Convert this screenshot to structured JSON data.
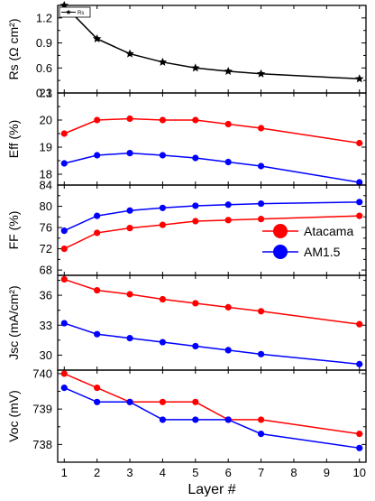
{
  "chart_data": {
    "type": "line",
    "xlabel": "Layer #",
    "x_ticks": [
      1,
      2,
      3,
      4,
      5,
      6,
      7,
      8,
      9,
      10
    ],
    "xlim": [
      0.8,
      10.2
    ],
    "colors": {
      "Rs": "#000000",
      "Atacama": "#ff0000",
      "AM1.5": "#0000ff"
    },
    "legend": {
      "placement": "right, in FF panel",
      "entries": [
        {
          "label": "Atacama",
          "color": "#ff0000",
          "marker": "circle"
        },
        {
          "label": "AM1.5",
          "color": "#0000ff",
          "marker": "circle"
        }
      ]
    },
    "panels": [
      {
        "id": "rs",
        "ylabel": "Rs (Ω cm²)",
        "ylim": [
          0.3,
          1.35
        ],
        "yticks": [
          0.3,
          0.6,
          0.9,
          1.2
        ],
        "mini_legend": "Rs",
        "series": [
          {
            "name": "Rs",
            "color": "#000000",
            "marker": "star",
            "x": [
              1,
              2,
              3,
              4,
              5,
              6,
              7,
              10
            ],
            "y": [
              1.35,
              0.95,
              0.77,
              0.67,
              0.6,
              0.56,
              0.53,
              0.47
            ]
          }
        ]
      },
      {
        "id": "eff",
        "ylabel": "Eff (%)",
        "ylim": [
          17.6,
          21
        ],
        "yticks": [
          18,
          19,
          20,
          21
        ],
        "series": [
          {
            "name": "Atacama",
            "color": "#ff0000",
            "marker": "circle",
            "x": [
              1,
              2,
              3,
              4,
              5,
              6,
              7,
              10
            ],
            "y": [
              19.5,
              20.0,
              20.05,
              20.0,
              20.0,
              19.85,
              19.7,
              19.15
            ]
          },
          {
            "name": "AM1.5",
            "color": "#0000ff",
            "marker": "circle",
            "x": [
              1,
              2,
              3,
              4,
              5,
              6,
              7,
              10
            ],
            "y": [
              18.4,
              18.7,
              18.78,
              18.7,
              18.6,
              18.45,
              18.3,
              17.7
            ]
          }
        ]
      },
      {
        "id": "ff",
        "ylabel": "FF (%)",
        "ylim": [
          67,
          84
        ],
        "yticks": [
          68,
          72,
          76,
          80,
          84
        ],
        "series": [
          {
            "name": "Atacama",
            "color": "#ff0000",
            "marker": "circle",
            "x": [
              1,
              2,
              3,
              4,
              5,
              6,
              7,
              10
            ],
            "y": [
              72.0,
              75.0,
              75.9,
              76.5,
              77.2,
              77.4,
              77.6,
              78.2
            ]
          },
          {
            "name": "AM1.5",
            "color": "#0000ff",
            "marker": "circle",
            "x": [
              1,
              2,
              3,
              4,
              5,
              6,
              7,
              10
            ],
            "y": [
              75.4,
              78.2,
              79.2,
              79.7,
              80.1,
              80.3,
              80.5,
              80.8
            ]
          }
        ]
      },
      {
        "id": "jsc",
        "ylabel": "Jsc (mA/cm²)",
        "ylim": [
          28.5,
          38
        ],
        "yticks": [
          30,
          33,
          36
        ],
        "series": [
          {
            "name": "Atacama",
            "color": "#ff0000",
            "marker": "circle",
            "x": [
              1,
              2,
              3,
              4,
              5,
              6,
              7,
              10
            ],
            "y": [
              37.6,
              36.5,
              36.1,
              35.6,
              35.2,
              34.8,
              34.4,
              33.1
            ]
          },
          {
            "name": "AM1.5",
            "color": "#0000ff",
            "marker": "circle",
            "x": [
              1,
              2,
              3,
              4,
              5,
              6,
              7,
              10
            ],
            "y": [
              33.2,
              32.1,
              31.7,
              31.3,
              30.9,
              30.5,
              30.1,
              29.1
            ]
          }
        ]
      },
      {
        "id": "voc",
        "ylabel": "Voc (mV)",
        "ylim": [
          737.5,
          740.1
        ],
        "yticks": [
          738,
          739,
          740
        ],
        "series": [
          {
            "name": "Atacama",
            "color": "#ff0000",
            "marker": "circle",
            "x": [
              1,
              2,
              3,
              4,
              5,
              6,
              7,
              10
            ],
            "y": [
              740.0,
              739.6,
              739.2,
              739.2,
              739.2,
              738.7,
              738.7,
              738.3
            ]
          },
          {
            "name": "AM1.5",
            "color": "#0000ff",
            "marker": "circle",
            "x": [
              1,
              2,
              3,
              4,
              5,
              6,
              7,
              10
            ],
            "y": [
              739.6,
              739.2,
              739.2,
              738.7,
              738.7,
              738.7,
              738.3,
              737.9
            ]
          }
        ]
      }
    ]
  }
}
